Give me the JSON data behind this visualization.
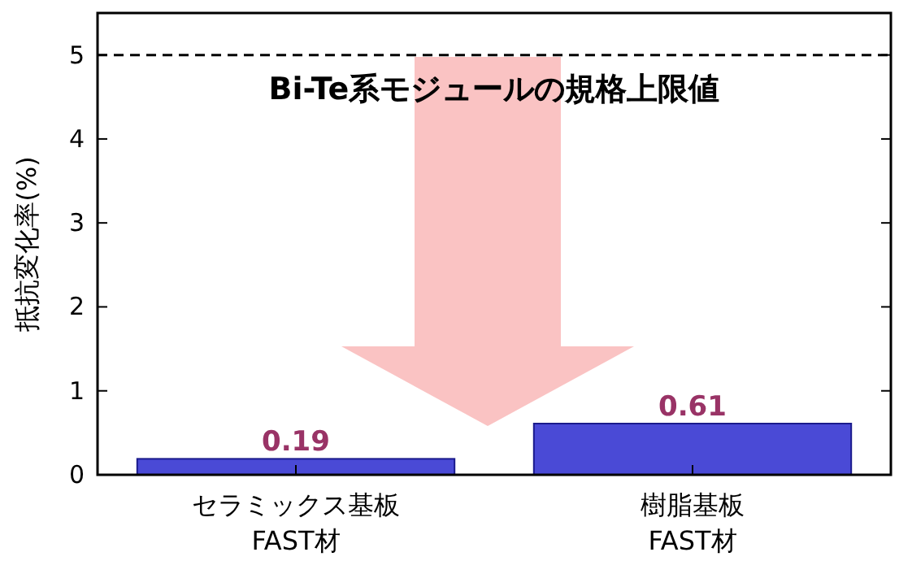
{
  "chart_data": {
    "type": "bar",
    "ylabel": "抵抗変化率(%)",
    "categories": [
      "セラミックス基板\nFAST材",
      "樹脂基板\nFAST材"
    ],
    "values": [
      0.19,
      0.61
    ],
    "color": "#4a4ad6",
    "data_labels": true,
    "ylim": [
      0,
      5.5
    ],
    "yticks": [
      0,
      1,
      2,
      3,
      4,
      5
    ],
    "ref_lines": [
      {
        "axis": "y",
        "value": 5,
        "label": "Bi-Te系モジュールの規格上限値",
        "color": "#000000",
        "line_style": "dashed"
      }
    ],
    "grid": false
  }
}
